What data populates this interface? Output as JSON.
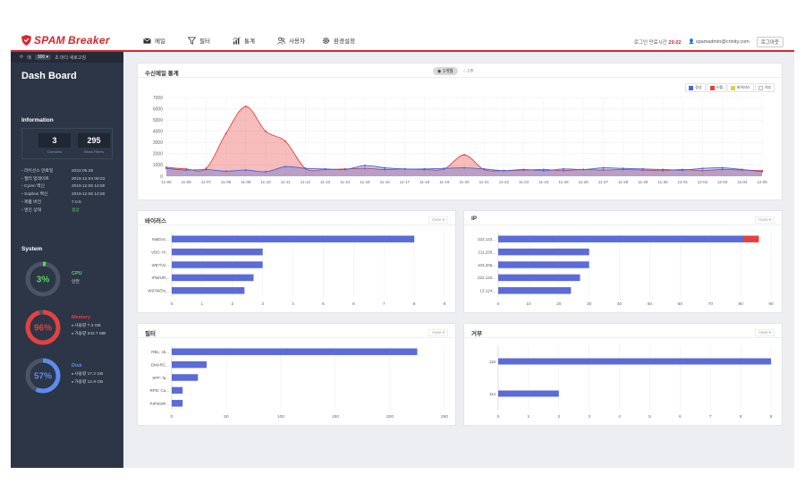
{
  "header": {
    "logo_prefix": "SPAM",
    "logo_suffix": "Breaker",
    "nav": [
      {
        "label": "메일",
        "icon": "mail-icon"
      },
      {
        "label": "필터",
        "icon": "filter-icon"
      },
      {
        "label": "통계",
        "icon": "chart-icon"
      },
      {
        "label": "사용자",
        "icon": "users-icon"
      },
      {
        "label": "환경설정",
        "icon": "gear-icon"
      }
    ],
    "login_time_label": "로그인 만료시간",
    "login_time": "29:22",
    "user": "spamadmin@crinity.com",
    "logout_label": "로그아웃"
  },
  "sidebar": {
    "refresh_label": "매",
    "refresh_value": "300",
    "refresh_suffix": "초 마다 새로고침",
    "title": "Dash Board",
    "info_heading": "Information",
    "domains_value": "3",
    "domains_label": "Domains",
    "filters_value": "295",
    "filters_label": "Block Filters",
    "kv": [
      {
        "k": "라이선스 만료일",
        "v": "2022.05.28"
      },
      {
        "k": "필터 업데이트",
        "v": "2019.12.04 09:23"
      },
      {
        "k": "Cyren 백신",
        "v": "2019.12.05 14:50"
      },
      {
        "k": "Sophos 백신",
        "v": "2019.12.05 14:50"
      },
      {
        "k": "제품 버전",
        "v": "7.0.5"
      },
      {
        "k": "엔진 상태",
        "v": "정상"
      }
    ],
    "system_heading": "System",
    "cpu": {
      "label": "CPU",
      "value": "3%",
      "percent": 3,
      "state": "안전",
      "color": "#5ed15e"
    },
    "memory": {
      "label": "Memory",
      "value": "96%",
      "percent": 96,
      "used": "사용량 7.4 GB",
      "free": "가용량 342.7 MB",
      "color": "#e5413f"
    },
    "disk": {
      "label": "Disk",
      "value": "57%",
      "percent": 57,
      "used": "사용량 17.2 GB",
      "free": "가용량 12.8 GB",
      "color": "#5b8cf0"
    }
  },
  "main_chart": {
    "title": "수신메일 통계",
    "period_options": [
      "1개월",
      "1주"
    ],
    "period_selected": "1개월",
    "legend": [
      {
        "label": "정상",
        "color": "#4a63d6"
      },
      {
        "label": "스팸",
        "color": "#e5413f"
      },
      {
        "label": "바이러스",
        "color": "#d8d24a"
      },
      {
        "label": "거부",
        "color": "#cccccc"
      }
    ]
  },
  "cards": {
    "virus_title": "바이러스",
    "ip_title": "IP",
    "filter_title": "필터",
    "reject_title": "거부",
    "more_label": "more"
  },
  "chart_data": [
    {
      "type": "area",
      "title": "수신메일 통계",
      "x": [
        "11-05",
        "11-06",
        "11-07",
        "11-08",
        "11-09",
        "11-10",
        "11-11",
        "11-12",
        "11-13",
        "11-14",
        "11-15",
        "11-16",
        "11-17",
        "11-18",
        "11-19",
        "11-20",
        "11-21",
        "11-22",
        "11-23",
        "11-24",
        "11-25",
        "11-26",
        "11-27",
        "11-28",
        "11-29",
        "11-30",
        "12-01",
        "12-02",
        "12-03",
        "12-04",
        "12-05"
      ],
      "ylim": [
        0,
        7000
      ],
      "yticks": [
        0,
        1000,
        2000,
        3000,
        4000,
        5000,
        6000,
        7000
      ],
      "series": [
        {
          "name": "스팸",
          "color": "#e5413f",
          "values": [
            800,
            650,
            700,
            3800,
            6200,
            4000,
            3100,
            700,
            600,
            650,
            700,
            600,
            650,
            600,
            650,
            1900,
            600,
            500,
            550,
            600,
            500,
            600,
            550,
            600,
            550,
            500,
            600,
            500,
            600,
            550,
            500
          ]
        },
        {
          "name": "정상",
          "color": "#4a63d6",
          "values": [
            700,
            550,
            600,
            450,
            550,
            400,
            850,
            700,
            650,
            600,
            950,
            750,
            650,
            650,
            700,
            750,
            650,
            500,
            600,
            500,
            650,
            600,
            750,
            700,
            650,
            600,
            550,
            700,
            750,
            600,
            400
          ]
        }
      ]
    },
    {
      "type": "bar",
      "orientation": "horizontal",
      "title": "바이러스",
      "categories": [
        "MalDoc...",
        "VDD: Hi...",
        "W97/Vir...",
        "IPM/UR...",
        "W97M/Do..."
      ],
      "values": [
        8,
        3,
        3,
        2.7,
        2.4
      ],
      "xlim": [
        0,
        9
      ],
      "xticks": [
        0,
        1,
        2,
        3,
        4,
        5,
        6,
        7,
        8,
        9
      ],
      "color": "#5b6bd8"
    },
    {
      "type": "bar",
      "orientation": "horizontal",
      "title": "IP",
      "categories": [
        "222.122...",
        "211.230...",
        "103.206...",
        "222.122...",
        "13.124..."
      ],
      "values": [
        81,
        30,
        30,
        27,
        24
      ],
      "extra": [
        {
          "category": "222.122...",
          "from": 81,
          "to": 86,
          "color": "#e5413f"
        }
      ],
      "xlim": [
        0,
        90
      ],
      "xticks": [
        0,
        10,
        20,
        30,
        40,
        50,
        60,
        70,
        80,
        90
      ],
      "color": "#5b6bd8"
    },
    {
      "type": "bar",
      "orientation": "horizontal",
      "title": "필터",
      "categories": [
        "RBL: sb...",
        "DMARC...",
        "SPF: fa...",
        "RPD: Ca...",
        "Kaheask..."
      ],
      "values": [
        225,
        32,
        24,
        10,
        10
      ],
      "xlim": [
        0,
        250
      ],
      "xticks": [
        0,
        50,
        100,
        150,
        200,
        250
      ],
      "color": "#5b6bd8"
    },
    {
      "type": "bar",
      "orientation": "horizontal",
      "title": "거부",
      "categories": [
        "115",
        "114"
      ],
      "values": [
        9,
        2
      ],
      "xlim": [
        0,
        9
      ],
      "xticks": [
        0,
        1,
        2,
        3,
        4,
        5,
        6,
        7,
        8,
        9
      ],
      "color": "#5b6bd8"
    }
  ]
}
